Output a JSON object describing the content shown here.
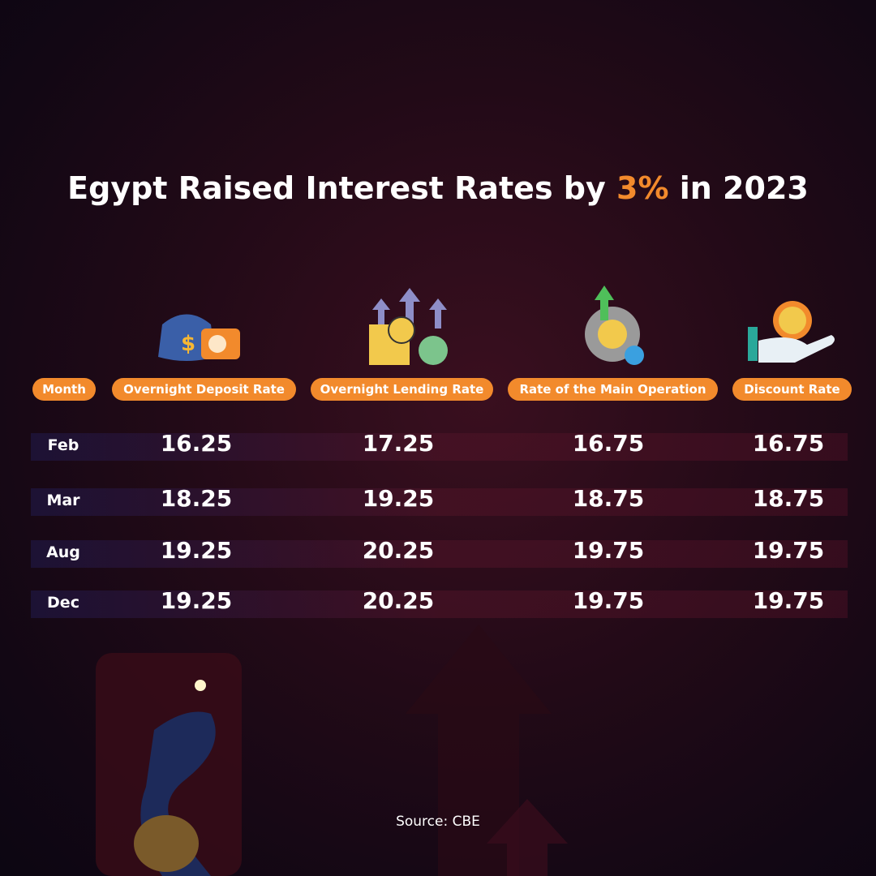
{
  "title": {
    "before": "Egypt Raised Interest Rates by",
    "highlight": "3%",
    "after": "in 2023"
  },
  "table": {
    "header": [
      "Month",
      "Overnight Deposit Rate",
      "Overnight Lending Rate",
      "Rate of the Main Operation",
      "Discount Rate"
    ],
    "rows": [
      [
        "Feb",
        16.25,
        17.25,
        16.75,
        16.75
      ],
      [
        "Mar",
        18.25,
        19.25,
        18.75,
        18.75
      ],
      [
        "Aug",
        19.25,
        20.25,
        19.75,
        19.75
      ],
      [
        "Dec",
        19.25,
        20.25,
        19.75,
        19.75
      ]
    ]
  },
  "source": "Source: CBE"
}
